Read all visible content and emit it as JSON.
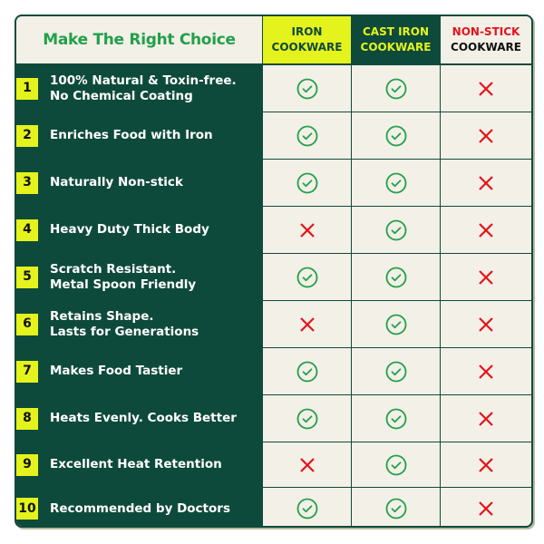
{
  "title": "Make The Right Choice",
  "columns": [
    {
      "line1": "IRON",
      "line2": "COOKWARE"
    },
    {
      "line1": "CAST IRON",
      "line2": "COOKWARE"
    },
    {
      "line1": "NON-STICK",
      "line2": "COOKWARE"
    }
  ],
  "colors": {
    "dark_green": "#0e4a3b",
    "lime": "#e4f31c",
    "check": "#22a04c",
    "cross": "#e3141b",
    "background": "#f3f0e7"
  },
  "rows": [
    {
      "num": "1",
      "line1": "100% Natural & Toxin-free.",
      "line2": "No Chemical Coating",
      "values": [
        true,
        true,
        false
      ]
    },
    {
      "num": "2",
      "line1": "Enriches Food with Iron",
      "line2": "",
      "values": [
        true,
        true,
        false
      ]
    },
    {
      "num": "3",
      "line1": "Naturally Non-stick",
      "line2": "",
      "values": [
        true,
        true,
        false
      ]
    },
    {
      "num": "4",
      "line1": "Heavy Duty Thick Body",
      "line2": "",
      "values": [
        false,
        true,
        false
      ]
    },
    {
      "num": "5",
      "line1": "Scratch Resistant.",
      "line2": "Metal Spoon Friendly",
      "values": [
        true,
        true,
        false
      ]
    },
    {
      "num": "6",
      "line1": "Retains Shape.",
      "line2": "Lasts for Generations",
      "values": [
        false,
        true,
        false
      ]
    },
    {
      "num": "7",
      "line1": "Makes Food Tastier",
      "line2": "",
      "values": [
        true,
        true,
        false
      ]
    },
    {
      "num": "8",
      "line1": "Heats Evenly. Cooks Better",
      "line2": "",
      "values": [
        true,
        true,
        false
      ]
    },
    {
      "num": "9",
      "line1": "Excellent Heat Retention",
      "line2": "",
      "values": [
        false,
        true,
        false
      ]
    },
    {
      "num": "10",
      "line1": "Recommended by Doctors",
      "line2": "",
      "values": [
        true,
        true,
        false
      ]
    }
  ]
}
